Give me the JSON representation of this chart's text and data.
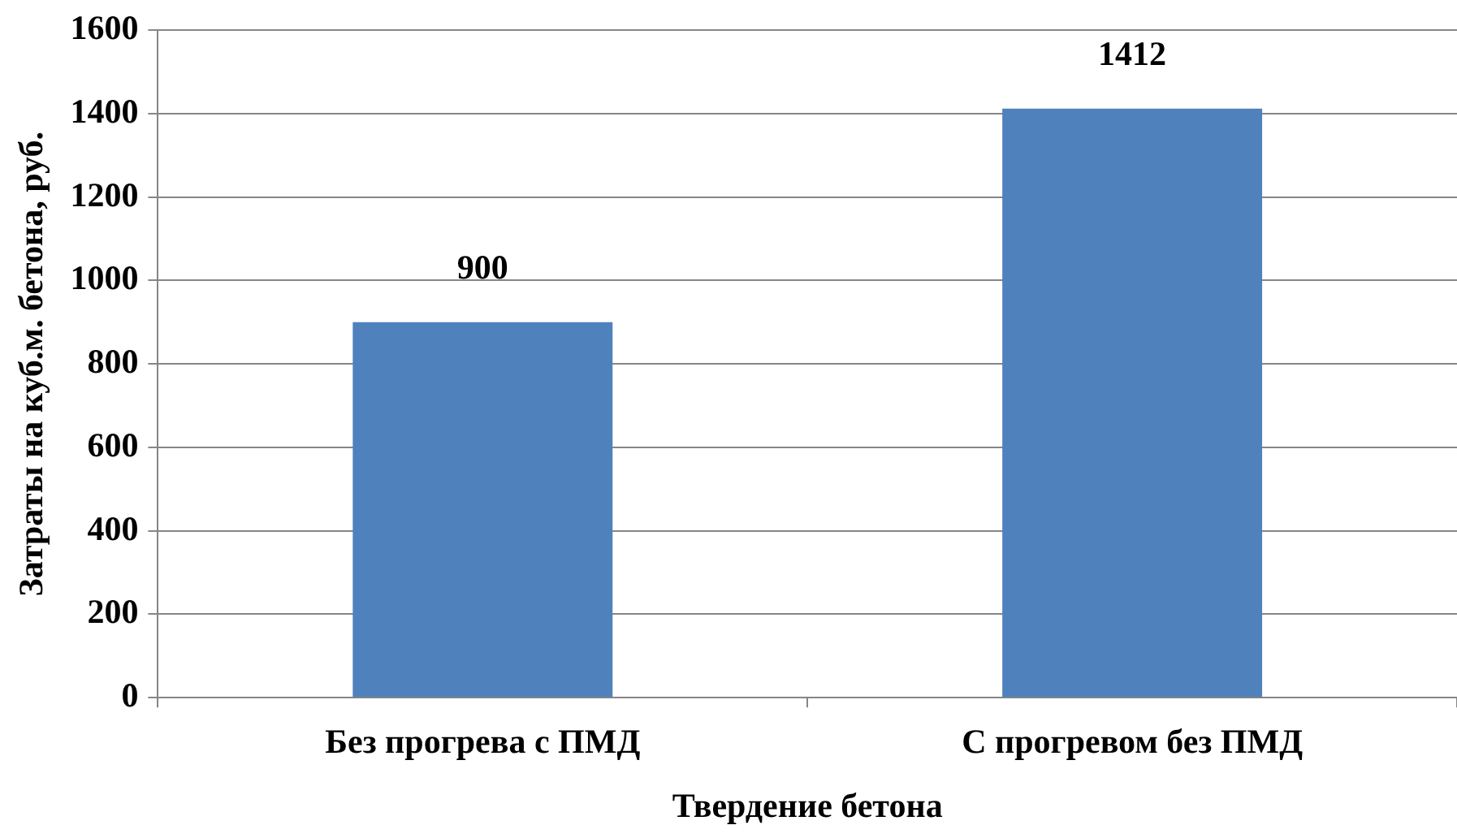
{
  "chart_data": {
    "type": "bar",
    "categories": [
      "Без прогрева с ПМД",
      "С прогревом без ПМД"
    ],
    "values": [
      900,
      1412
    ],
    "color": "#4f81bd",
    "xlabel": "Твердение бетона",
    "ylabel": "Затраты на куб.м. бетона, руб.",
    "ylim": [
      0,
      1600
    ],
    "yticks": [
      0,
      200,
      400,
      600,
      800,
      1000,
      1200,
      1400,
      1600
    ],
    "grid": "y",
    "legend": false,
    "data_labels": true
  }
}
